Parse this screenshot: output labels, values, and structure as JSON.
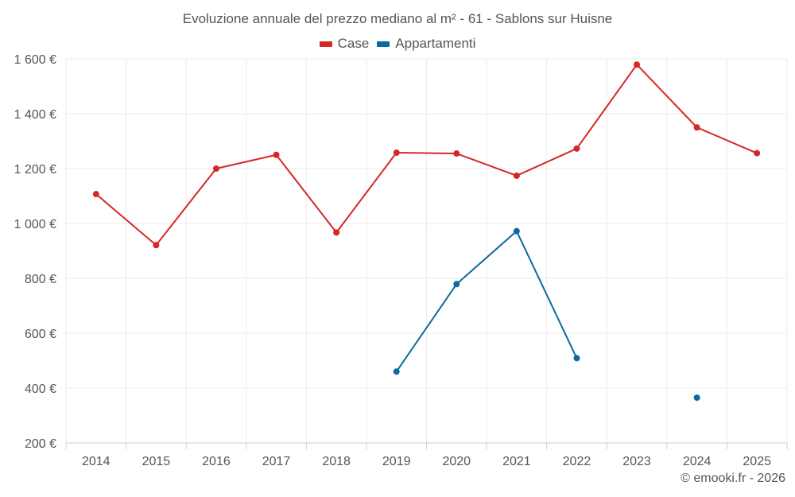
{
  "chart_data": {
    "type": "line",
    "title": "Evoluzione annuale del prezzo mediano al m² - 61 - Sablons sur Huisne",
    "xlabel": "",
    "ylabel": "",
    "categories": [
      "2014",
      "2015",
      "2016",
      "2017",
      "2018",
      "2019",
      "2020",
      "2021",
      "2022",
      "2023",
      "2024",
      "2025"
    ],
    "ylim": [
      200,
      1600
    ],
    "yticks": [
      200,
      400,
      600,
      800,
      1000,
      1200,
      1400,
      1600
    ],
    "ytick_labels": [
      "200 €",
      "400 €",
      "600 €",
      "800 €",
      "1 000 €",
      "1 200 €",
      "1 400 €",
      "1 600 €"
    ],
    "grid": true,
    "legend_position": "top-center",
    "series": [
      {
        "name": "Case",
        "color": "#d62728",
        "values": [
          1107,
          921,
          1200,
          1250,
          967,
          1258,
          1255,
          1174,
          1273,
          1579,
          1350,
          1256
        ]
      },
      {
        "name": "Appartamenti",
        "color": "#0a6aa1",
        "values": [
          null,
          null,
          null,
          null,
          null,
          460,
          779,
          972,
          509,
          null,
          365,
          null
        ]
      }
    ]
  },
  "credit": "© emooki.fr - 2026"
}
